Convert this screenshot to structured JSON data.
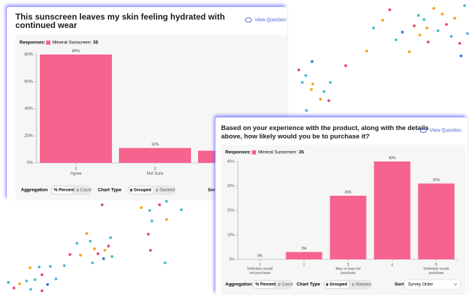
{
  "chart_data": [
    {
      "type": "bar",
      "title": "This sunscreen leaves my skin feeling hydrated with continued wear",
      "view_question": "View Question",
      "responses_label": "Responses:",
      "categories": [
        "1\nAgree",
        "2\nNot Sure",
        null
      ],
      "series": [
        {
          "name": "Mineral Sunscreen:",
          "responses": 35,
          "color": "#f7638f",
          "values": [
            80,
            11,
            9
          ],
          "value_labels": [
            "80%",
            "11%",
            null
          ]
        }
      ],
      "ylim": [
        0,
        80
      ],
      "yticks": [
        {
          "value": 0,
          "label": "0%"
        },
        {
          "value": 20,
          "label": "20%"
        },
        {
          "value": 40,
          "label": "40%"
        },
        {
          "value": 60,
          "label": "60%"
        },
        {
          "value": 80,
          "label": "80%"
        }
      ],
      "grid": false,
      "controls": {
        "aggregation_label": "Aggregation",
        "percent": "% Percent",
        "count": "Count",
        "chart_type_label": "Chart Type",
        "grouped": "Grouped",
        "stacked": "Stacked",
        "sort_label": "Sort"
      }
    },
    {
      "type": "bar",
      "title": "Based on your experience with the product, along with the details above, how likely would you be to purchase it?",
      "view_question": "View Question",
      "responses_label": "Responses:",
      "categories": [
        "1\nDefinitely would\nnot purchase",
        "2",
        "3\nMay or may not\npurchase",
        "4",
        "5\nDefinitely would\npurchase"
      ],
      "series": [
        {
          "name": "Mineral Sunscreen:",
          "responses": 35,
          "color": "#f7638f",
          "values": [
            0,
            3,
            26,
            40,
            31
          ],
          "value_labels": [
            "0%",
            "3%",
            "26%",
            "40%",
            "31%"
          ]
        }
      ],
      "ylim": [
        0,
        40
      ],
      "yticks": [
        {
          "value": 0,
          "label": "0%"
        },
        {
          "value": 10,
          "label": "10%"
        },
        {
          "value": 20,
          "label": "20%"
        },
        {
          "value": 30,
          "label": "30%"
        },
        {
          "value": 40,
          "label": "40%"
        }
      ],
      "grid": false,
      "controls": {
        "aggregation_label": "Aggregation",
        "percent": "% Percent",
        "count": "Count",
        "chart_type_label": "Chart Type",
        "grouped": "Grouped",
        "stacked": "Stacked",
        "sort_label": "Sort",
        "sort_value": "Survey Order"
      }
    }
  ]
}
